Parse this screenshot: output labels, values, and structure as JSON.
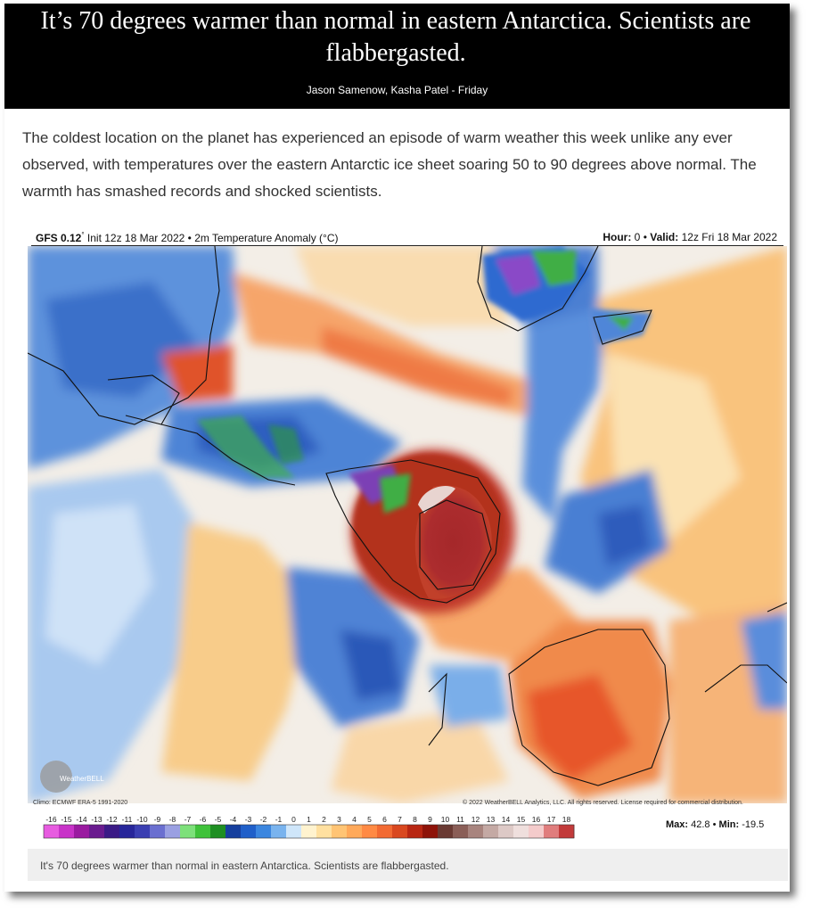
{
  "article": {
    "headline": "It’s 70 degrees warmer than normal in eastern Antarctica. Scientists are flabbergasted.",
    "byline": "Jason Samenow, Kasha Patel - Friday",
    "lede": "The coldest location on the planet has experienced an episode of warm weather this week unlike any ever observed, with temperatures over the eastern Antarctic ice sheet soaring 50 to 90 degrees above normal. The warmth has smashed records and shocked scientists.",
    "caption": "It's 70 degrees warmer than normal in eastern Antarctica. Scientists are flabbergasted."
  },
  "map": {
    "model": "GFS 0.12",
    "degree_mark": "°",
    "init": "Init 12z 18 Mar 2022",
    "separator": "•",
    "field": "2m Temperature Anomaly (°C)",
    "hour_label": "Hour:",
    "hour_value": "0",
    "valid_label": "Valid:",
    "valid_value": "12z Fri 18 Mar 2022",
    "logo_text": "WeatherBELL",
    "climo": "Climo: ECMWF ERA-5 1991-2020",
    "copyright": "© 2022 WeatherBELL Analytics, LLC. All rights reserved. License required for commercial distribution.",
    "max_label": "Max:",
    "max_value": "42.8",
    "min_label": "Min:",
    "min_value": "-19.5"
  },
  "colorbar": {
    "labels": [
      "-16",
      "-15",
      "-14",
      "-13",
      "-12",
      "-11",
      "-10",
      "-9",
      "-8",
      "-7",
      "-6",
      "-5",
      "-4",
      "-3",
      "-2",
      "-1",
      "0",
      "1",
      "2",
      "3",
      "4",
      "5",
      "6",
      "7",
      "8",
      "9",
      "10",
      "11",
      "12",
      "13",
      "14",
      "15",
      "16",
      "17",
      "18"
    ],
    "colors": [
      "#e75be0",
      "#c832c8",
      "#9a1aa0",
      "#6a1b8f",
      "#3b1a86",
      "#27269a",
      "#3b3fb2",
      "#6a6fd0",
      "#9aa0e2",
      "#7de07a",
      "#3fc23a",
      "#1e8f22",
      "#163f9e",
      "#1f5fc9",
      "#3b86df",
      "#79b3ee",
      "#cfe6fa",
      "#fff3cf",
      "#ffe0a0",
      "#ffc474",
      "#ffa95a",
      "#ff8a44",
      "#f26a32",
      "#d9481f",
      "#b82612",
      "#8e1309",
      "#6a3a33",
      "#8a5e57",
      "#a8847e",
      "#c4a9a4",
      "#ddc9c6",
      "#efdfdd",
      "#f4cbcb",
      "#e07d7d",
      "#c23a3a"
    ]
  }
}
